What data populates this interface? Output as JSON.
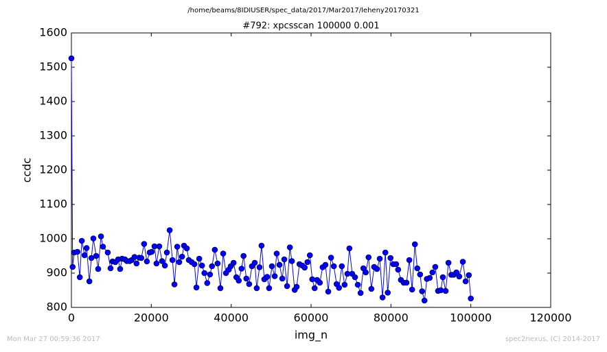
{
  "chart_data": {
    "type": "line",
    "suptitle": "/home/beams/8IDIUSER/spec_data/2017/Mar2017/leheny20170321",
    "title": "#792: xpcsscan 100000 0.001",
    "xlabel": "img_n",
    "ylabel": "ccdc",
    "footer_left": "Mon Mar 27 00:59:36 2017",
    "footer_right": "spec2nexus, (C) 2014-2017",
    "xlim": [
      0,
      120000
    ],
    "xticks": [
      0,
      20000,
      40000,
      60000,
      80000,
      100000,
      120000
    ],
    "ylim": [
      800,
      1600
    ],
    "yticks": [
      800,
      900,
      1000,
      1100,
      1200,
      1300,
      1400,
      1500,
      1600
    ],
    "grid": false,
    "color": "#0000ff",
    "x": [
      0,
      300,
      700,
      1500,
      2100,
      2600,
      3300,
      3800,
      4500,
      5000,
      5500,
      6200,
      6700,
      7400,
      7900,
      9100,
      9800,
      10300,
      11000,
      11700,
      12200,
      12700,
      13400,
      13900,
      14600,
      15100,
      15800,
      16300,
      17000,
      17500,
      18200,
      18900,
      19600,
      20100,
      20800,
      21300,
      22000,
      22700,
      23400,
      23900,
      24600,
      25300,
      25800,
      26500,
      27000,
      27700,
      28200,
      28900,
      29400,
      30100,
      30800,
      31300,
      32000,
      32700,
      33300,
      34000,
      34700,
      35200,
      35900,
      36600,
      37300,
      38000,
      38700,
      39400,
      39900,
      40600,
      41300,
      41900,
      42600,
      43100,
      43800,
      44500,
      45200,
      45900,
      46400,
      47100,
      47600,
      48300,
      49000,
      49500,
      50200,
      50900,
      51400,
      52100,
      52800,
      53300,
      54000,
      54700,
      55200,
      55900,
      56400,
      57100,
      57800,
      58400,
      59100,
      59700,
      60300,
      60900,
      61500,
      62200,
      62900,
      63600,
      64300,
      65000,
      65700,
      66400,
      67000,
      67700,
      68400,
      69100,
      69600,
      70300,
      71000,
      71700,
      72400,
      73100,
      73700,
      74400,
      75100,
      75800,
      76500,
      77200,
      77900,
      78600,
      79200,
      79900,
      80600,
      81300,
      81800,
      82500,
      83200,
      83900,
      84600,
      85300,
      86000,
      86600,
      87300,
      87800,
      88400,
      89000,
      89700,
      90400,
      91100,
      91800,
      92500,
      93000,
      93700,
      94400,
      95100,
      95700,
      96400,
      97100,
      98000,
      98700,
      99500,
      100000
    ],
    "values": [
      1526,
      918,
      960,
      962,
      888,
      994,
      952,
      973,
      876,
      944,
      1001,
      950,
      912,
      1007,
      977,
      960,
      914,
      934,
      932,
      940,
      912,
      942,
      940,
      935,
      935,
      938,
      947,
      928,
      945,
      944,
      985,
      934,
      960,
      962,
      978,
      928,
      978,
      935,
      922,
      960,
      1025,
      938,
      867,
      977,
      932,
      948,
      980,
      972,
      938,
      932,
      926,
      858,
      942,
      922,
      900,
      871,
      896,
      920,
      968,
      928,
      856,
      957,
      900,
      910,
      920,
      930,
      888,
      878,
      913,
      950,
      884,
      868,
      920,
      930,
      856,
      917,
      980,
      882,
      889,
      856,
      920,
      891,
      957,
      924,
      884,
      940,
      862,
      975,
      935,
      851,
      860,
      926,
      922,
      916,
      932,
      952,
      882,
      856,
      880,
      872,
      917,
      924,
      846,
      945,
      920,
      868,
      857,
      920,
      866,
      898,
      972,
      898,
      888,
      866,
      842,
      914,
      902,
      946,
      854,
      918,
      912,
      942,
      829,
      960,
      843,
      944,
      926,
      926,
      910,
      880,
      872,
      872,
      938,
      852,
      984,
      914,
      896,
      847,
      820,
      883,
      886,
      902,
      918,
      848,
      850,
      888,
      848,
      930,
      895,
      895,
      902,
      890,
      933,
      876,
      894,
      826
    ]
  }
}
